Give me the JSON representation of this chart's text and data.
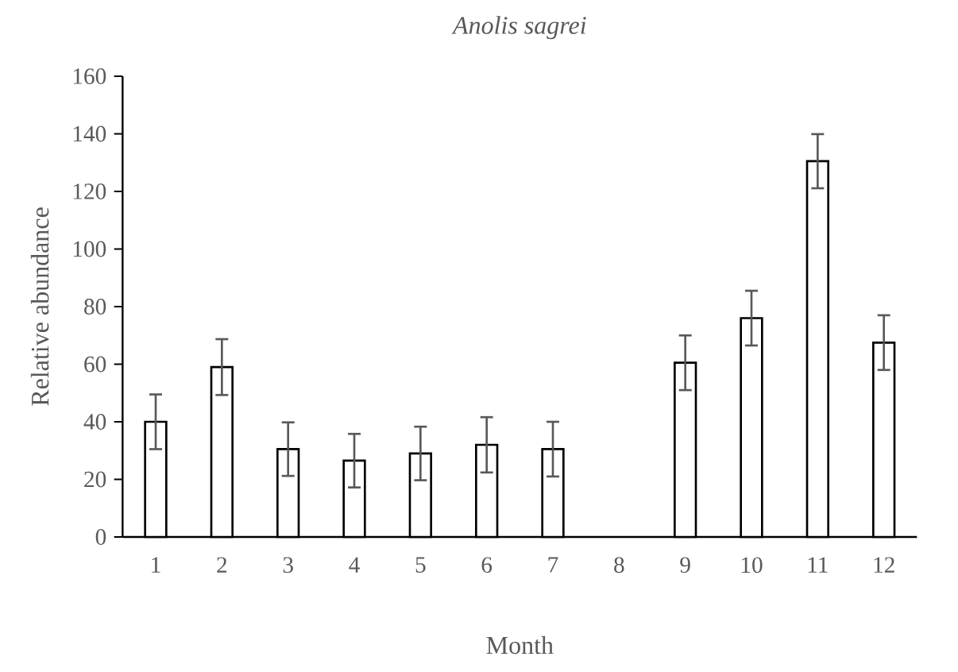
{
  "chart_data": {
    "type": "bar",
    "title": "Anolis sagrei",
    "xlabel": "Month",
    "ylabel": "Relative abundance",
    "categories": [
      "1",
      "2",
      "3",
      "4",
      "5",
      "6",
      "7",
      "8",
      "9",
      "10",
      "11",
      "12"
    ],
    "values": [
      40,
      59,
      30.5,
      26.5,
      29,
      32,
      30.5,
      null,
      60.5,
      76,
      130.5,
      67.5
    ],
    "errors": [
      9.5,
      9.7,
      9.3,
      9.3,
      9.3,
      9.6,
      9.5,
      null,
      9.5,
      9.5,
      9.4,
      9.5
    ],
    "color": "#ffffff",
    "ylim": [
      0,
      160
    ],
    "yticks": [
      0,
      20,
      40,
      60,
      80,
      100,
      120,
      140,
      160
    ]
  }
}
